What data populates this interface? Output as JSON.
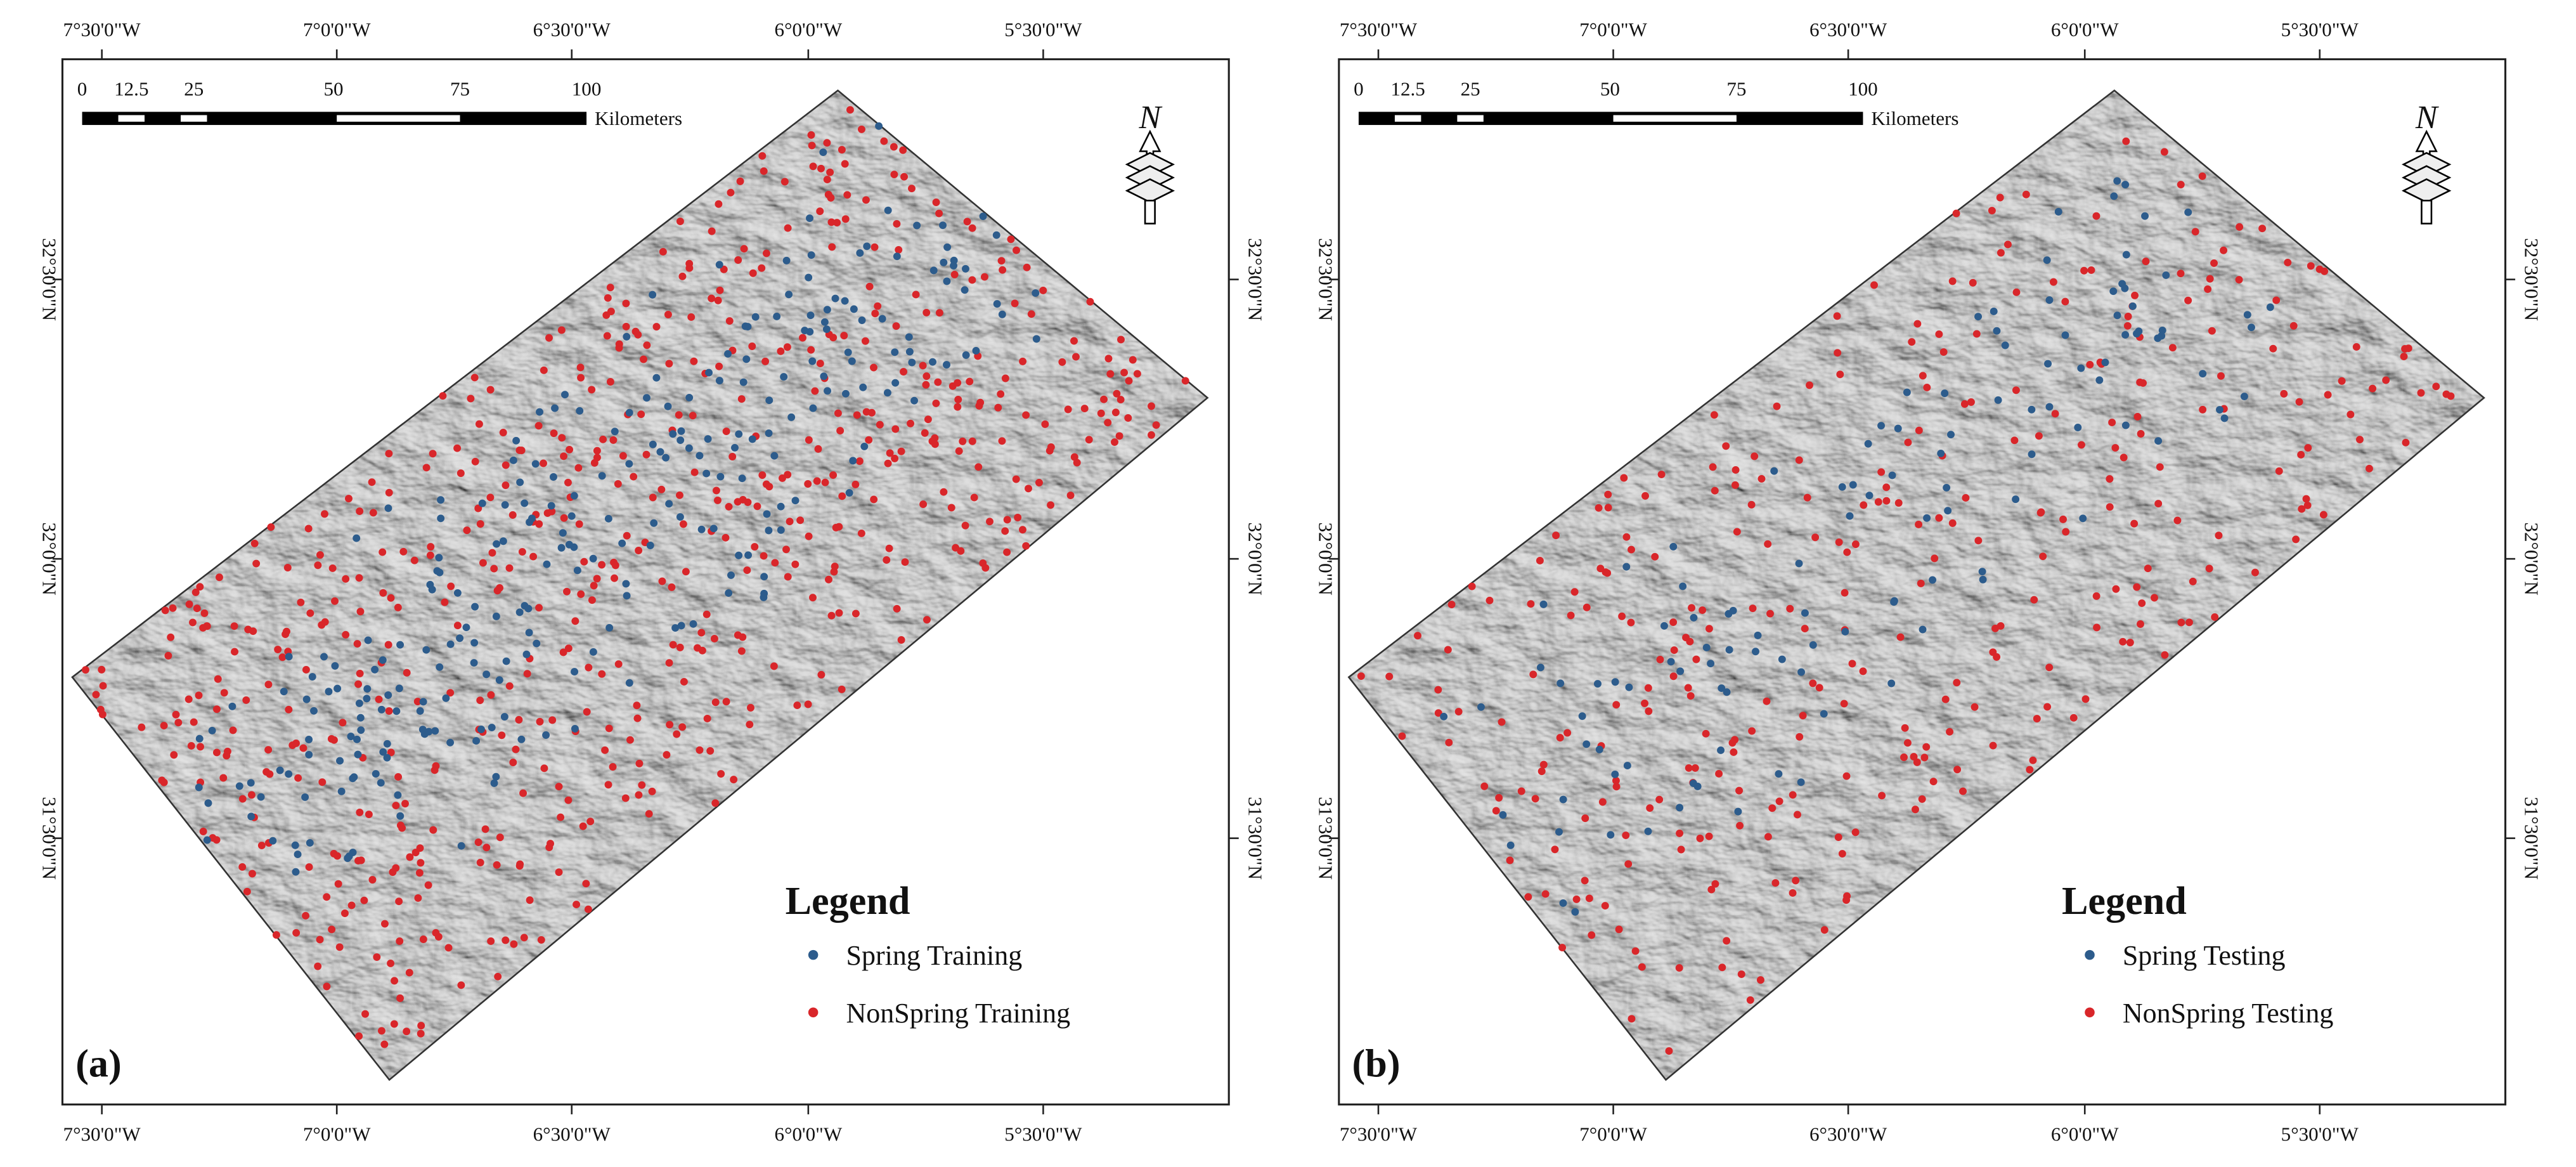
{
  "longitude_labels": [
    "7°30'0\"W",
    "7°0'0\"W",
    "6°30'0\"W",
    "6°0'0\"W",
    "5°30'0\"W"
  ],
  "latitude_labels": [
    "32°30'0\"N",
    "32°0'0\"N",
    "31°30'0\"N"
  ],
  "scale_bar": {
    "labels": [
      "0",
      "12.5",
      "25",
      "50",
      "75",
      "100"
    ],
    "unit": "Kilometers"
  },
  "north_label": "N",
  "panels": [
    {
      "label": "(a)",
      "legend": {
        "title": "Legend",
        "items": [
          "Spring Training",
          "NonSpring Training"
        ]
      }
    },
    {
      "label": "(b)",
      "legend": {
        "title": "Legend",
        "items": [
          "Spring Testing",
          "NonSpring Testing"
        ]
      }
    }
  ]
}
